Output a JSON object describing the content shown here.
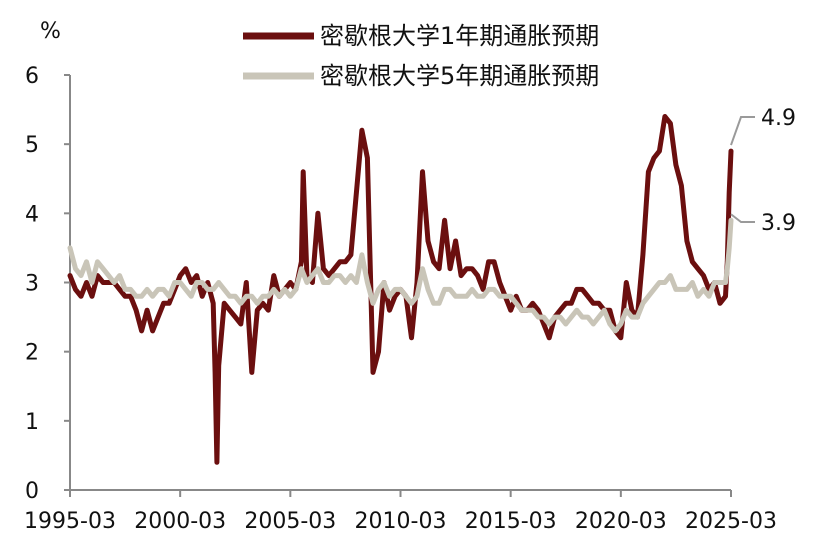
{
  "chart_data": {
    "type": "line",
    "ylabel": "%",
    "ylim": [
      0,
      6
    ],
    "yticks": [
      "0",
      "1",
      "2",
      "3",
      "4",
      "5",
      "6"
    ],
    "xlim": [
      "1995-03",
      "2025-03"
    ],
    "xticks": [
      "1995-03",
      "2000-03",
      "2005-03",
      "2010-03",
      "2015-03",
      "2020-03",
      "2025-03"
    ],
    "grid": false,
    "legend_position": "top-center",
    "colors": {
      "series1": "#6b0f0f",
      "series2": "#c9c5b8"
    },
    "series": [
      {
        "name": "密歇根大学1年期通胀预期",
        "end_label": "4.9",
        "points": [
          [
            "1995-03",
            3.1
          ],
          [
            "1995-06",
            2.9
          ],
          [
            "1995-09",
            2.8
          ],
          [
            "1995-12",
            3.0
          ],
          [
            "1996-03",
            2.8
          ],
          [
            "1996-06",
            3.1
          ],
          [
            "1996-09",
            3.0
          ],
          [
            "1996-12",
            3.0
          ],
          [
            "1997-03",
            3.0
          ],
          [
            "1997-06",
            2.9
          ],
          [
            "1997-09",
            2.8
          ],
          [
            "1997-12",
            2.8
          ],
          [
            "1998-03",
            2.6
          ],
          [
            "1998-06",
            2.3
          ],
          [
            "1998-09",
            2.6
          ],
          [
            "1998-12",
            2.3
          ],
          [
            "1999-03",
            2.5
          ],
          [
            "1999-06",
            2.7
          ],
          [
            "1999-09",
            2.7
          ],
          [
            "1999-12",
            2.9
          ],
          [
            "2000-03",
            3.1
          ],
          [
            "2000-06",
            3.2
          ],
          [
            "2000-09",
            3.0
          ],
          [
            "2000-12",
            3.1
          ],
          [
            "2001-03",
            2.8
          ],
          [
            "2001-06",
            3.0
          ],
          [
            "2001-09",
            2.7
          ],
          [
            "2001-10",
            1.7
          ],
          [
            "2001-11",
            0.4
          ],
          [
            "2001-12",
            1.8
          ],
          [
            "2002-03",
            2.7
          ],
          [
            "2002-06",
            2.6
          ],
          [
            "2002-09",
            2.5
          ],
          [
            "2002-12",
            2.4
          ],
          [
            "2003-03",
            3.0
          ],
          [
            "2003-06",
            1.7
          ],
          [
            "2003-09",
            2.6
          ],
          [
            "2003-12",
            2.7
          ],
          [
            "2004-03",
            2.6
          ],
          [
            "2004-06",
            3.1
          ],
          [
            "2004-09",
            2.8
          ],
          [
            "2004-12",
            2.9
          ],
          [
            "2005-03",
            3.0
          ],
          [
            "2005-06",
            2.9
          ],
          [
            "2005-09",
            3.3
          ],
          [
            "2005-10",
            4.6
          ],
          [
            "2005-12",
            3.1
          ],
          [
            "2006-03",
            3.0
          ],
          [
            "2006-06",
            4.0
          ],
          [
            "2006-09",
            3.2
          ],
          [
            "2006-12",
            3.1
          ],
          [
            "2007-03",
            3.2
          ],
          [
            "2007-06",
            3.3
          ],
          [
            "2007-09",
            3.3
          ],
          [
            "2007-12",
            3.4
          ],
          [
            "2008-03",
            4.3
          ],
          [
            "2008-06",
            5.2
          ],
          [
            "2008-09",
            4.8
          ],
          [
            "2008-12",
            1.7
          ],
          [
            "2009-03",
            2.0
          ],
          [
            "2009-06",
            3.0
          ],
          [
            "2009-09",
            2.6
          ],
          [
            "2009-12",
            2.8
          ],
          [
            "2010-03",
            2.9
          ],
          [
            "2010-06",
            2.8
          ],
          [
            "2010-09",
            2.2
          ],
          [
            "2010-12",
            3.0
          ],
          [
            "2011-03",
            4.6
          ],
          [
            "2011-06",
            3.6
          ],
          [
            "2011-09",
            3.3
          ],
          [
            "2011-12",
            3.2
          ],
          [
            "2012-03",
            3.9
          ],
          [
            "2012-06",
            3.2
          ],
          [
            "2012-09",
            3.6
          ],
          [
            "2012-12",
            3.1
          ],
          [
            "2013-03",
            3.2
          ],
          [
            "2013-06",
            3.2
          ],
          [
            "2013-09",
            3.1
          ],
          [
            "2013-12",
            2.9
          ],
          [
            "2014-03",
            3.3
          ],
          [
            "2014-06",
            3.3
          ],
          [
            "2014-09",
            3.0
          ],
          [
            "2014-12",
            2.8
          ],
          [
            "2015-03",
            2.6
          ],
          [
            "2015-06",
            2.8
          ],
          [
            "2015-09",
            2.6
          ],
          [
            "2015-12",
            2.6
          ],
          [
            "2016-03",
            2.7
          ],
          [
            "2016-06",
            2.6
          ],
          [
            "2016-09",
            2.4
          ],
          [
            "2016-12",
            2.2
          ],
          [
            "2017-03",
            2.5
          ],
          [
            "2017-06",
            2.6
          ],
          [
            "2017-09",
            2.7
          ],
          [
            "2017-12",
            2.7
          ],
          [
            "2018-03",
            2.9
          ],
          [
            "2018-06",
            2.9
          ],
          [
            "2018-09",
            2.8
          ],
          [
            "2018-12",
            2.7
          ],
          [
            "2019-03",
            2.7
          ],
          [
            "2019-06",
            2.6
          ],
          [
            "2019-09",
            2.6
          ],
          [
            "2019-12",
            2.3
          ],
          [
            "2020-03",
            2.2
          ],
          [
            "2020-06",
            3.0
          ],
          [
            "2020-09",
            2.6
          ],
          [
            "2020-12",
            2.5
          ],
          [
            "2021-03",
            3.4
          ],
          [
            "2021-06",
            4.6
          ],
          [
            "2021-09",
            4.8
          ],
          [
            "2021-12",
            4.9
          ],
          [
            "2022-03",
            5.4
          ],
          [
            "2022-06",
            5.3
          ],
          [
            "2022-09",
            4.7
          ],
          [
            "2022-12",
            4.4
          ],
          [
            "2023-03",
            3.6
          ],
          [
            "2023-06",
            3.3
          ],
          [
            "2023-09",
            3.2
          ],
          [
            "2023-12",
            3.1
          ],
          [
            "2024-03",
            2.9
          ],
          [
            "2024-06",
            3.0
          ],
          [
            "2024-09",
            2.7
          ],
          [
            "2024-12",
            2.8
          ],
          [
            "2025-01",
            3.3
          ],
          [
            "2025-02",
            4.3
          ],
          [
            "2025-03",
            4.9
          ]
        ]
      },
      {
        "name": "密歇根大学5年期通胀预期",
        "end_label": "3.9",
        "points": [
          [
            "1995-03",
            3.5
          ],
          [
            "1995-06",
            3.2
          ],
          [
            "1995-09",
            3.1
          ],
          [
            "1995-12",
            3.3
          ],
          [
            "1996-03",
            3.0
          ],
          [
            "1996-06",
            3.3
          ],
          [
            "1996-09",
            3.2
          ],
          [
            "1996-12",
            3.1
          ],
          [
            "1997-03",
            3.0
          ],
          [
            "1997-06",
            3.1
          ],
          [
            "1997-09",
            2.9
          ],
          [
            "1997-12",
            2.9
          ],
          [
            "1998-03",
            2.8
          ],
          [
            "1998-06",
            2.8
          ],
          [
            "1998-09",
            2.9
          ],
          [
            "1998-12",
            2.8
          ],
          [
            "1999-03",
            2.9
          ],
          [
            "1999-06",
            2.9
          ],
          [
            "1999-09",
            2.8
          ],
          [
            "1999-12",
            3.0
          ],
          [
            "2000-03",
            3.0
          ],
          [
            "2000-06",
            2.9
          ],
          [
            "2000-09",
            2.8
          ],
          [
            "2000-12",
            3.0
          ],
          [
            "2001-03",
            3.0
          ],
          [
            "2001-06",
            2.9
          ],
          [
            "2001-09",
            2.9
          ],
          [
            "2001-12",
            3.0
          ],
          [
            "2002-03",
            2.9
          ],
          [
            "2002-06",
            2.8
          ],
          [
            "2002-09",
            2.8
          ],
          [
            "2002-12",
            2.7
          ],
          [
            "2003-03",
            2.8
          ],
          [
            "2003-06",
            2.8
          ],
          [
            "2003-09",
            2.7
          ],
          [
            "2003-12",
            2.8
          ],
          [
            "2004-03",
            2.8
          ],
          [
            "2004-06",
            2.9
          ],
          [
            "2004-09",
            2.8
          ],
          [
            "2004-12",
            2.9
          ],
          [
            "2005-03",
            2.8
          ],
          [
            "2005-06",
            2.9
          ],
          [
            "2005-09",
            3.2
          ],
          [
            "2005-12",
            3.0
          ],
          [
            "2006-03",
            3.1
          ],
          [
            "2006-06",
            3.2
          ],
          [
            "2006-09",
            3.0
          ],
          [
            "2006-12",
            3.0
          ],
          [
            "2007-03",
            3.1
          ],
          [
            "2007-06",
            3.1
          ],
          [
            "2007-09",
            3.0
          ],
          [
            "2007-12",
            3.1
          ],
          [
            "2008-03",
            3.0
          ],
          [
            "2008-06",
            3.4
          ],
          [
            "2008-09",
            3.0
          ],
          [
            "2008-12",
            2.7
          ],
          [
            "2009-03",
            2.9
          ],
          [
            "2009-06",
            3.0
          ],
          [
            "2009-09",
            2.8
          ],
          [
            "2009-12",
            2.9
          ],
          [
            "2010-03",
            2.9
          ],
          [
            "2010-06",
            2.8
          ],
          [
            "2010-09",
            2.7
          ],
          [
            "2010-12",
            2.8
          ],
          [
            "2011-03",
            3.2
          ],
          [
            "2011-06",
            2.9
          ],
          [
            "2011-09",
            2.7
          ],
          [
            "2011-12",
            2.7
          ],
          [
            "2012-03",
            2.9
          ],
          [
            "2012-06",
            2.9
          ],
          [
            "2012-09",
            2.8
          ],
          [
            "2012-12",
            2.8
          ],
          [
            "2013-03",
            2.8
          ],
          [
            "2013-06",
            2.9
          ],
          [
            "2013-09",
            2.8
          ],
          [
            "2013-12",
            2.8
          ],
          [
            "2014-03",
            2.9
          ],
          [
            "2014-06",
            2.9
          ],
          [
            "2014-09",
            2.8
          ],
          [
            "2014-12",
            2.8
          ],
          [
            "2015-03",
            2.8
          ],
          [
            "2015-06",
            2.7
          ],
          [
            "2015-09",
            2.6
          ],
          [
            "2015-12",
            2.6
          ],
          [
            "2016-03",
            2.6
          ],
          [
            "2016-06",
            2.5
          ],
          [
            "2016-09",
            2.5
          ],
          [
            "2016-12",
            2.4
          ],
          [
            "2017-03",
            2.5
          ],
          [
            "2017-06",
            2.5
          ],
          [
            "2017-09",
            2.4
          ],
          [
            "2017-12",
            2.5
          ],
          [
            "2018-03",
            2.6
          ],
          [
            "2018-06",
            2.5
          ],
          [
            "2018-09",
            2.5
          ],
          [
            "2018-12",
            2.4
          ],
          [
            "2019-03",
            2.5
          ],
          [
            "2019-06",
            2.6
          ],
          [
            "2019-09",
            2.4
          ],
          [
            "2019-12",
            2.3
          ],
          [
            "2020-03",
            2.4
          ],
          [
            "2020-06",
            2.6
          ],
          [
            "2020-09",
            2.5
          ],
          [
            "2020-12",
            2.5
          ],
          [
            "2021-03",
            2.7
          ],
          [
            "2021-06",
            2.8
          ],
          [
            "2021-09",
            2.9
          ],
          [
            "2021-12",
            3.0
          ],
          [
            "2022-03",
            3.0
          ],
          [
            "2022-06",
            3.1
          ],
          [
            "2022-09",
            2.9
          ],
          [
            "2022-12",
            2.9
          ],
          [
            "2023-03",
            2.9
          ],
          [
            "2023-06",
            3.0
          ],
          [
            "2023-09",
            2.8
          ],
          [
            "2023-12",
            2.9
          ],
          [
            "2024-03",
            2.8
          ],
          [
            "2024-06",
            3.0
          ],
          [
            "2024-09",
            3.0
          ],
          [
            "2024-12",
            3.0
          ],
          [
            "2025-01",
            3.2
          ],
          [
            "2025-02",
            3.5
          ],
          [
            "2025-03",
            3.9
          ]
        ]
      }
    ]
  }
}
